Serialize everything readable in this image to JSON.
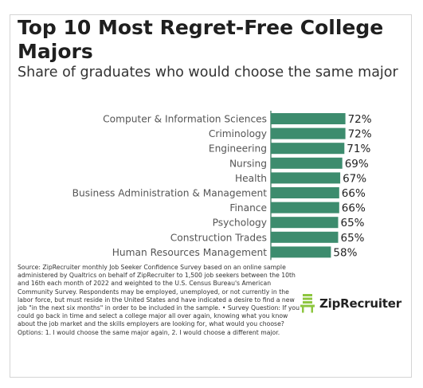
{
  "header": {
    "title": "Top 10 Most Regret-Free College Majors",
    "subtitle": "Share of graduates who would choose the same major"
  },
  "chart_data": {
    "type": "bar",
    "orientation": "horizontal",
    "categories": [
      "Computer & Information Sciences",
      "Criminology",
      "Engineering",
      "Nursing",
      "Health",
      "Business Administration & Management",
      "Finance",
      "Psychology",
      "Construction Trades",
      "Human Resources Management"
    ],
    "values": [
      72,
      72,
      71,
      69,
      67,
      66,
      66,
      65,
      65,
      58
    ],
    "value_labels": [
      "72%",
      "72%",
      "71%",
      "69%",
      "67%",
      "66%",
      "66%",
      "65%",
      "65%",
      "58%"
    ],
    "title": "Top 10 Most Regret-Free College Majors",
    "subtitle": "Share of graduates who would choose the same major",
    "bar_color": "#3d8c6e",
    "grid": false,
    "legend": "none"
  },
  "source_note": "Source: ZipRecruiter monthly Job Seeker Confidence Survey based on an online sample administered by Qualtrics on behalf of ZipRecruiter to 1,500 job seekers between the 10th and 16th each month of 2022 and weighted to the U.S. Census Bureau's American Community Survey. Respondents may be employed, unemployed, or not currently in the labor force, but must reside in the United States and have indicated a desire to find a new job \"in the next six months\" in order to be included in the sample. • Survey Question: If you could go back in time and select a college major all over again, knowing what you know about the job market and the skills employers are looking for, what would you choose? Options: 1. I would choose the same major again, 2. I would choose a different major.",
  "logo": {
    "text": "ZipRecruiter",
    "icon": "ziprecruiter-chair-logo-icon",
    "icon_color": "#8dc63f"
  }
}
